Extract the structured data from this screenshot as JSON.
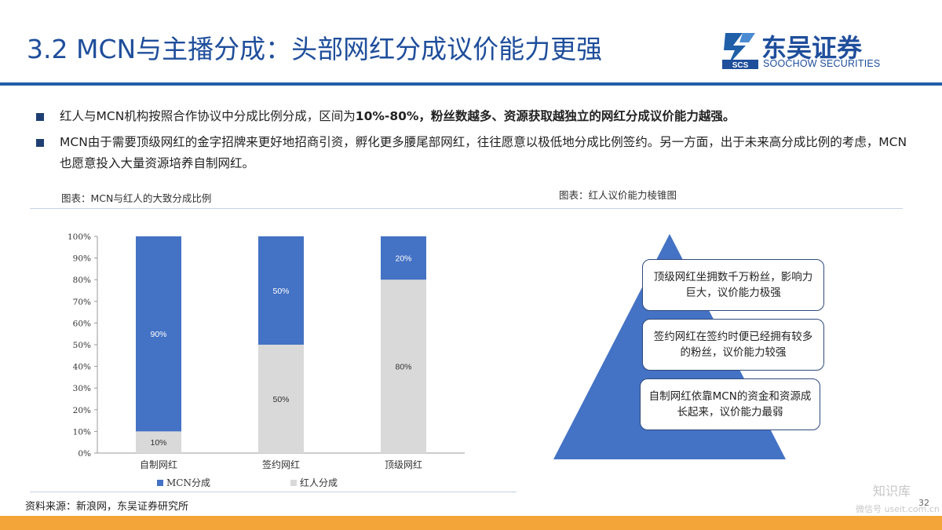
{
  "header": {
    "title": "3.2 MCN与主播分成：头部网红分成议价能力更强",
    "logo": {
      "cn": "东吴证券",
      "en": "SOOCHOW SECURITIES",
      "mark_text": "SCS"
    }
  },
  "bullets": [
    {
      "pre": "红人与MCN机构按照合作协议中分成比例分成，区间为",
      "bold": "10%-80%，粉丝数越多、资源获取越独立的网红分成议价能力越强。",
      "post": ""
    },
    {
      "pre": "MCN由于需要顶级网红的金字招牌来更好地招商引资，孵化更多腰尾部网红，往往愿意以极低地分成比例签约。另一方面，出于未来高分成比例的考虑，MCN也愿意投入大量资源培养自制网红。",
      "bold": "",
      "post": ""
    }
  ],
  "captions": {
    "left": "图表：MCN与红人的大致分成比例",
    "right": "图表：红人议价能力棱锥图"
  },
  "chart_data": {
    "type": "bar",
    "stacked": true,
    "percent": true,
    "categories": [
      "自制网红",
      "签约网红",
      "顶级网红"
    ],
    "series": [
      {
        "name": "红人分成",
        "values": [
          10,
          50,
          80
        ],
        "color": "#d9d9d9",
        "labels": [
          "10%",
          "50%",
          "80%"
        ]
      },
      {
        "name": "MCN分成",
        "values": [
          90,
          50,
          20
        ],
        "color": "#4472c4",
        "labels": [
          "90%",
          "50%",
          "20%"
        ]
      }
    ],
    "yticks": [
      "0%",
      "10%",
      "20%",
      "30%",
      "40%",
      "50%",
      "60%",
      "70%",
      "80%",
      "90%",
      "100%"
    ],
    "ylim": [
      0,
      100
    ],
    "legend": [
      "MCN分成",
      "红人分成"
    ],
    "legend_position": "bottom"
  },
  "pyramid": {
    "color": "#4472c4",
    "levels": [
      "顶级网红坐拥数千万粉丝，影响力巨大，议价能力极强",
      "签约网红在签约时便已经拥有较多的粉丝，议价能力较强",
      "自制网红依靠MCN的资金和资源成长起来，议价能力最弱"
    ]
  },
  "footer": {
    "source": "资料来源：新浪网，东吴证券研究所",
    "page": "32",
    "watermark_top": "知识库",
    "watermark_bottom": "微信号 useit.com.cn"
  },
  "colors": {
    "brand": "#1f4e9b",
    "footer": "#f4a53a",
    "mcn": "#4472c4",
    "kol": "#d9d9d9"
  }
}
